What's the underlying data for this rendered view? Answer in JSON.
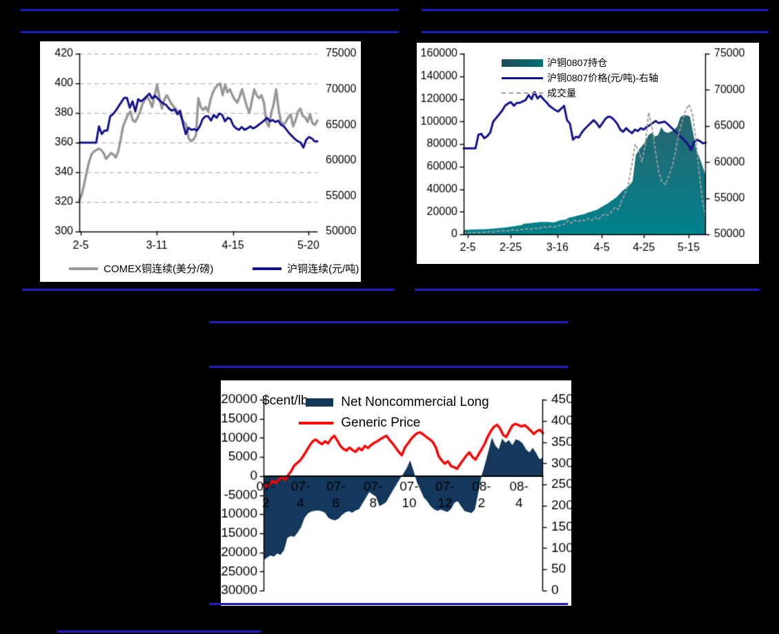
{
  "page": {
    "background": "#000000",
    "separator_color": "#1c1cc0"
  },
  "chart_data": [
    {
      "id": "comex-shfe-copper",
      "type": "line",
      "title": "",
      "legend_position": "bottom",
      "left_axis": {
        "min": 300,
        "max": 420,
        "tick_values": [
          300,
          320,
          340,
          360,
          380,
          400,
          420
        ],
        "tick_labels": [
          "300",
          "320",
          "340",
          "360",
          "380",
          "400",
          "420"
        ],
        "grid": true
      },
      "right_axis": {
        "min": 50000,
        "max": 75000,
        "tick_values": [
          50000,
          55000,
          60000,
          65000,
          70000,
          75000
        ],
        "tick_labels": [
          "50000",
          "55000",
          "60000",
          "65000",
          "70000",
          "75000"
        ],
        "line": false
      },
      "x_ticks": {
        "labels": [
          "2-5",
          "3-11",
          "4-15",
          "5-20"
        ],
        "fracs": [
          0.006,
          0.325,
          0.645,
          0.962
        ]
      },
      "series": [
        {
          "name": "COMEX铜连续(美分/磅)",
          "type": "line",
          "axis": "left",
          "color": "#989898",
          "width": 3.5,
          "values": [
            321,
            325,
            332,
            340,
            347,
            352,
            354,
            355,
            356,
            355,
            353,
            349,
            351,
            353,
            352,
            350,
            354,
            362,
            371,
            375,
            379,
            381,
            375,
            374,
            377,
            381,
            386,
            389,
            391,
            388,
            384,
            392,
            399,
            390,
            383,
            389,
            392,
            389,
            386,
            384,
            382,
            380,
            377,
            374,
            372,
            363,
            361,
            362,
            365,
            390,
            384,
            382,
            384,
            381,
            389,
            394,
            397,
            399,
            400,
            392,
            399,
            394,
            396,
            392,
            389,
            387,
            391,
            396,
            390,
            384,
            380,
            388,
            396,
            392,
            390,
            392,
            387,
            374,
            371,
            380,
            386,
            396,
            383,
            374,
            372,
            374,
            377,
            379,
            371,
            375,
            381,
            383,
            378,
            377,
            374,
            379,
            373,
            372,
            375
          ]
        },
        {
          "name": "沪铜连续(元/吨)",
          "type": "line",
          "axis": "right",
          "color": "#11118c",
          "width": 3,
          "values": [
            62500,
            62500,
            62500,
            62500,
            62500,
            62500,
            62500,
            64800,
            63700,
            64200,
            64200,
            66200,
            66500,
            67000,
            67600,
            68200,
            68800,
            68800,
            67400,
            68300,
            66900,
            68600,
            68300,
            68600,
            69000,
            69400,
            68700,
            69100,
            68700,
            68300,
            68000,
            67800,
            67300,
            67000,
            67200,
            66500,
            67000,
            65200,
            63700,
            64600,
            64300,
            64400,
            64200,
            64800,
            65800,
            66200,
            66200,
            65600,
            66400,
            66000,
            66600,
            66400,
            65500,
            66000,
            65800,
            64900,
            64500,
            64300,
            64700,
            64300,
            64500,
            64800,
            64500,
            64700,
            65000,
            65300,
            65600,
            66000,
            65500,
            65700,
            65400,
            65600,
            65000,
            64800,
            64300,
            63800,
            63400,
            63000,
            62700,
            62500,
            61800,
            62900,
            63300,
            63100,
            62700,
            62700
          ]
        }
      ]
    },
    {
      "id": "shfe-0807",
      "type": "area+line",
      "title": "",
      "legend_position": "top-left-inside",
      "left_axis": {
        "min": 0,
        "max": 160000,
        "tick_values": [
          0,
          20000,
          40000,
          60000,
          80000,
          100000,
          120000,
          140000,
          160000
        ],
        "tick_labels": [
          "0",
          "20000",
          "40000",
          "60000",
          "80000",
          "100000",
          "120000",
          "140000",
          "160000"
        ],
        "grid": false
      },
      "right_axis": {
        "min": 50000,
        "max": 75000,
        "tick_values": [
          50000,
          55000,
          60000,
          65000,
          70000,
          75000
        ],
        "tick_labels": [
          "50000",
          "55000",
          "60000",
          "65000",
          "70000",
          "75000"
        ],
        "line": true
      },
      "x_ticks": {
        "labels": [
          "2-5",
          "2-25",
          "3-16",
          "4-5",
          "4-25",
          "5-15"
        ],
        "fracs": [
          0.017,
          0.194,
          0.387,
          0.57,
          0.744,
          0.929
        ]
      },
      "series": [
        {
          "name": "沪铜0807持仓",
          "type": "area",
          "axis": "left",
          "fill_top": "#3e5660",
          "fill_bottom": "#00828c",
          "baseline": 0,
          "values": [
            4000,
            4000,
            4100,
            4200,
            4300,
            4400,
            4500,
            4600,
            4800,
            5000,
            5200,
            5500,
            5800,
            6000,
            6400,
            6800,
            7200,
            7800,
            8000,
            9400,
            9600,
            10000,
            10400,
            10600,
            11000,
            10900,
            11000,
            10800,
            10600,
            11000,
            12400,
            12700,
            13000,
            14800,
            15300,
            16000,
            16800,
            17400,
            18000,
            19400,
            20000,
            21000,
            22000,
            23800,
            25500,
            27000,
            29000,
            31000,
            33000,
            36000,
            39000,
            41000,
            43500,
            47000,
            70000,
            75000,
            78500,
            82000,
            88000,
            90000,
            86500,
            88000,
            95000,
            91000,
            90000,
            91000,
            92500,
            95500,
            104000,
            105500,
            105500,
            104500,
            90000,
            75000,
            68000,
            60000,
            52000
          ]
        },
        {
          "name": "沪铜0807价格(元/吨)-右轴",
          "type": "line",
          "axis": "right",
          "color": "#11118c",
          "width": 3,
          "values": [
            61900,
            61900,
            61900,
            61900,
            61900,
            63800,
            63900,
            63300,
            63600,
            64100,
            65600,
            66100,
            66600,
            67100,
            67800,
            68100,
            68300,
            67800,
            68200,
            68200,
            68400,
            68600,
            69300,
            68700,
            69700,
            68800,
            69200,
            68700,
            68300,
            67800,
            67500,
            67200,
            67000,
            67400,
            67800,
            65800,
            65300,
            63100,
            63500,
            63400,
            64100,
            64600,
            65000,
            65400,
            65800,
            65400,
            64800,
            65400,
            66000,
            66300,
            66200,
            65800,
            65300,
            64500,
            64200,
            64700,
            64300,
            64000,
            64500,
            64300,
            64700,
            64500,
            64900,
            65100,
            65400,
            65700,
            65400,
            65500,
            65600,
            65300,
            64900,
            64500,
            64100,
            63700,
            63300,
            62900,
            62400,
            61700,
            62800,
            63100,
            62900,
            62600,
            62700
          ]
        },
        {
          "name": "成交量",
          "type": "dashed-line",
          "axis": "left",
          "color": "#9c9c9c",
          "width": 2,
          "values": [
            1500,
            1200,
            1500,
            1300,
            1800,
            1500,
            2000,
            1800,
            2400,
            2000,
            2600,
            3000,
            3400,
            2900,
            3500,
            4000,
            3400,
            4100,
            4500,
            5000,
            4400,
            5600,
            5000,
            6000,
            6600,
            6000,
            7000,
            6400,
            7600,
            8000,
            9000,
            12000,
            10000,
            12500,
            11000,
            13000,
            12000,
            14000,
            12500,
            15000,
            13000,
            16000,
            18000,
            17000,
            20000,
            24000,
            22000,
            30000,
            36000,
            45000,
            62000,
            80000,
            74000,
            64000,
            80000,
            108000,
            95000,
            74000,
            55000,
            46000,
            44000,
            52000,
            60000,
            74000,
            90000,
            100000,
            110000,
            115000,
            107000,
            85000,
            55000,
            30000,
            14000
          ]
        }
      ]
    },
    {
      "id": "net-noncommercial-long",
      "type": "area+line",
      "title": "",
      "unit_label": "$cent/lb",
      "legend_position": "top-inside",
      "left_axis": {
        "min": -30000,
        "max": 20000,
        "tick_values": [
          -30000,
          -25000,
          -20000,
          -15000,
          -10000,
          -5000,
          0,
          5000,
          10000,
          15000,
          20000
        ],
        "tick_labels": [
          "-30000",
          "-25000",
          "-20000",
          "-15000",
          "-10000",
          "-5000",
          "0",
          "5000",
          "10000",
          "15000",
          "20000"
        ],
        "grid": false
      },
      "right_axis": {
        "min": 0,
        "max": 450,
        "tick_values": [
          0,
          50,
          100,
          150,
          200,
          250,
          300,
          350,
          400,
          450
        ],
        "tick_labels": [
          "0",
          "50",
          "100",
          "150",
          "200",
          "250",
          "300",
          "350",
          "400",
          "450"
        ],
        "line": true
      },
      "zero_line": true,
      "x_ticks": {
        "labels": [
          [
            "07-",
            "2"
          ],
          [
            "07-",
            "4"
          ],
          [
            "07-",
            "6"
          ],
          [
            "07-",
            "8"
          ],
          [
            "07-",
            "10"
          ],
          [
            "07-",
            "12"
          ],
          [
            "08-",
            "2"
          ],
          [
            "08-",
            "4"
          ]
        ],
        "fracs": [
          0.008,
          0.132,
          0.259,
          0.392,
          0.521,
          0.649,
          0.78,
          0.914
        ]
      },
      "series": [
        {
          "name": "Net Noncommercial Long",
          "type": "area",
          "axis": "left",
          "fill": "#14375c",
          "baseline": 0,
          "values": [
            -22000,
            -21400,
            -20800,
            -21100,
            -20300,
            -20600,
            -19400,
            -16200,
            -15700,
            -15900,
            -14800,
            -13400,
            -11000,
            -9800,
            -9300,
            -9100,
            -9000,
            -9200,
            -9600,
            -10900,
            -11400,
            -11600,
            -11200,
            -10200,
            -9500,
            -9200,
            -9600,
            -9000,
            -8700,
            -7200,
            -5700,
            -4200,
            -4800,
            -5400,
            -7900,
            -7400,
            -6800,
            -5200,
            -3700,
            -2200,
            -700,
            600,
            2100,
            4100,
            1400,
            -1600,
            -3600,
            -5600,
            -6600,
            -7900,
            -8700,
            -9100,
            -8800,
            -9100,
            -9400,
            -8600,
            -7000,
            -6600,
            -8000,
            -9200,
            -9400,
            -9700,
            -8800,
            -4400,
            200,
            3200,
            6600,
            10100,
            8000,
            7000,
            9800,
            8700,
            9400,
            8100,
            9600,
            9300,
            8600,
            7000,
            6200,
            7400,
            6000,
            4400,
            4900
          ]
        },
        {
          "name": "Generic Price",
          "type": "line",
          "axis": "right",
          "color": "#ff0000",
          "width": 3.5,
          "values": [
            250,
            244,
            252,
            258,
            254,
            262,
            268,
            261,
            272,
            282,
            295,
            301,
            308,
            318,
            330,
            342,
            352,
            356,
            350,
            345,
            352,
            347,
            358,
            365,
            354,
            341,
            334,
            330,
            337,
            331,
            327,
            336,
            331,
            341,
            336,
            343,
            348,
            352,
            357,
            361,
            365,
            355,
            347,
            337,
            327,
            319,
            337,
            347,
            357,
            365,
            371,
            373,
            368,
            362,
            357,
            351,
            339,
            317,
            307,
            299,
            305,
            294,
            291,
            287,
            298,
            308,
            318,
            326,
            315,
            309,
            321,
            333,
            346,
            363,
            376,
            386,
            391,
            382,
            367,
            362,
            376,
            389,
            393,
            390,
            387,
            390,
            384,
            377,
            369,
            376,
            379,
            371
          ]
        }
      ]
    }
  ]
}
